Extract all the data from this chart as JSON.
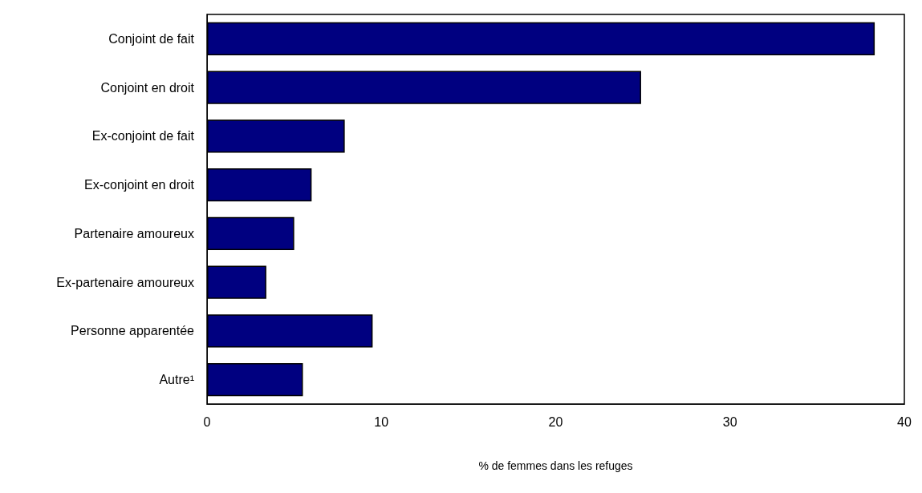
{
  "chart_data": {
    "type": "bar",
    "orientation": "horizontal",
    "xlabel": "% de femmes dans les refuges",
    "categories": [
      "Conjoint de fait",
      "Conjoint en droit",
      "Ex-conjoint de fait",
      "Ex-conjoint en droit",
      "Partenaire amoureux",
      "Ex-partenaire amoureux",
      "Personne apparentée",
      "Autre¹"
    ],
    "values": [
      38.3,
      24.9,
      7.9,
      6.0,
      5.0,
      3.4,
      9.5,
      5.5
    ],
    "color": "#000080",
    "xlim": [
      0,
      40
    ],
    "xticks": [
      0,
      10,
      20,
      30,
      40
    ],
    "grid": false
  }
}
